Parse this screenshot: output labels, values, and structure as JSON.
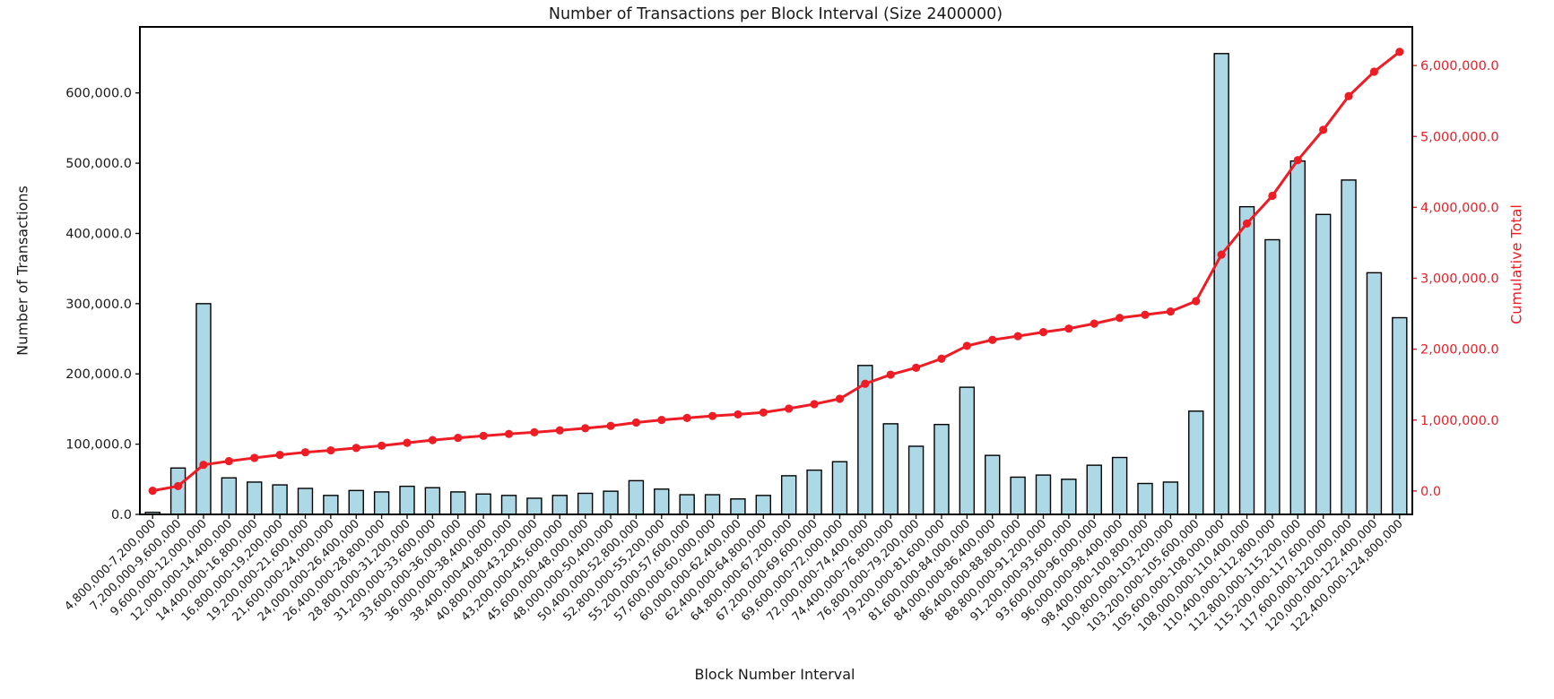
{
  "chart_data": {
    "type": "bar",
    "title": "Number of Transactions per Block Interval (Size 2400000)",
    "xlabel": "Block Number Interval",
    "ylabel": "Number of Transactions",
    "ylabel_right": "Cumulative Total",
    "grid": false,
    "legend": "none",
    "background": "#ffffff",
    "categories": [
      "4,800,000-7,200,000",
      "7,200,000-9,600,000",
      "9,600,000-12,000,000",
      "12,000,000-14,400,000",
      "14,400,000-16,800,000",
      "16,800,000-19,200,000",
      "19,200,000-21,600,000",
      "21,600,000-24,000,000",
      "24,000,000-26,400,000",
      "26,400,000-28,800,000",
      "28,800,000-31,200,000",
      "31,200,000-33,600,000",
      "33,600,000-36,000,000",
      "36,000,000-38,400,000",
      "38,400,000-40,800,000",
      "40,800,000-43,200,000",
      "43,200,000-45,600,000",
      "45,600,000-48,000,000",
      "48,000,000-50,400,000",
      "50,400,000-52,800,000",
      "52,800,000-55,200,000",
      "55,200,000-57,600,000",
      "57,600,000-60,000,000",
      "60,000,000-62,400,000",
      "62,400,000-64,800,000",
      "64,800,000-67,200,000",
      "67,200,000-69,600,000",
      "69,600,000-72,000,000",
      "72,000,000-74,400,000",
      "74,400,000-76,800,000",
      "76,800,000-79,200,000",
      "79,200,000-81,600,000",
      "81,600,000-84,000,000",
      "84,000,000-86,400,000",
      "86,400,000-88,800,000",
      "88,800,000-91,200,000",
      "91,200,000-93,600,000",
      "93,600,000-96,000,000",
      "96,000,000-98,400,000",
      "98,400,000-100,800,000",
      "100,800,000-103,200,000",
      "103,200,000-105,600,000",
      "105,600,000-108,000,000",
      "108,000,000-110,400,000",
      "110,400,000-112,800,000",
      "112,800,000-115,200,000",
      "115,200,000-117,600,000",
      "117,600,000-120,000,000",
      "120,000,000-122,400,000",
      "122,400,000-124,800,000"
    ],
    "series": [
      {
        "name": "Number of Transactions",
        "type": "bar",
        "axis": "left",
        "color": "#add8e6",
        "edge_color": "#000000",
        "values": [
          3000,
          66000,
          300000,
          52000,
          46000,
          42000,
          37000,
          27000,
          34000,
          32000,
          40000,
          38000,
          32000,
          29000,
          27000,
          23000,
          27000,
          30000,
          33000,
          48000,
          36000,
          28000,
          28000,
          22000,
          27000,
          55000,
          63000,
          75000,
          212000,
          129000,
          97000,
          128000,
          181000,
          84000,
          53000,
          56000,
          50000,
          70000,
          81000,
          44000,
          46000,
          147000,
          656000,
          438000,
          391000,
          503000,
          427000,
          476000,
          344000,
          280000
        ]
      },
      {
        "name": "Cumulative Total",
        "type": "line",
        "axis": "right",
        "color": "#ee1c25",
        "marker": "circle",
        "values": [
          3000,
          69000,
          369000,
          421000,
          467000,
          509000,
          546000,
          573000,
          607000,
          639000,
          679000,
          717000,
          749000,
          778000,
          805000,
          828000,
          855000,
          885000,
          918000,
          966000,
          1002000,
          1030000,
          1058000,
          1080000,
          1107000,
          1162000,
          1225000,
          1300000,
          1512000,
          1641000,
          1738000,
          1866000,
          2047000,
          2131000,
          2184000,
          2240000,
          2290000,
          2360000,
          2441000,
          2485000,
          2531000,
          2678000,
          3334000,
          3772000,
          4163000,
          4666000,
          5093000,
          5569000,
          5913000,
          6193000
        ]
      }
    ],
    "y_axis_left": {
      "color": "#1a1a1a",
      "tick_values": [
        0,
        100000,
        200000,
        300000,
        400000,
        500000,
        600000
      ],
      "tick_labels": [
        "0.0",
        "100,000.0",
        "200,000.0",
        "300,000.0",
        "400,000.0",
        "500,000.0",
        "600,000.0"
      ],
      "ylim": [
        0,
        694000
      ]
    },
    "y_axis_right": {
      "color": "#ee1c25",
      "tick_values": [
        0,
        1000000,
        2000000,
        3000000,
        4000000,
        5000000,
        6000000
      ],
      "tick_labels": [
        "0.0",
        "1,000,000.0",
        "2,000,000.0",
        "3,000,000.0",
        "4,000,000.0",
        "5,000,000.0",
        "6,000,000.0"
      ],
      "ylim": [
        -330000,
        6545000
      ]
    }
  }
}
